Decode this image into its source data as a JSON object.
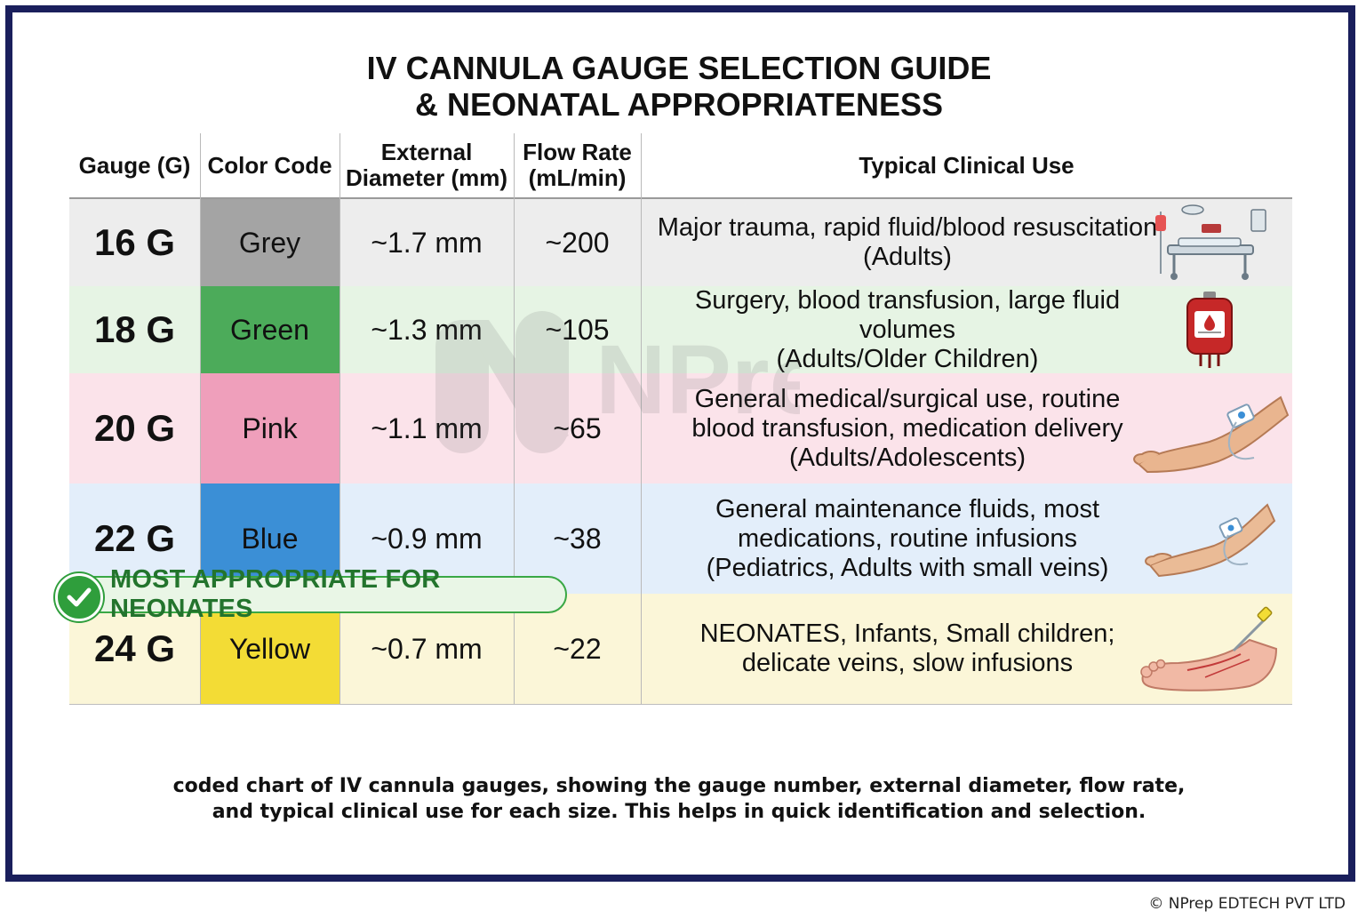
{
  "title": {
    "line1": "IV CANNULA GAUGE SELECTION GUIDE",
    "line2": "& NEONATAL APPROPRIATENESS"
  },
  "watermark": {
    "text": "NPrep"
  },
  "table": {
    "headers": {
      "gauge": "Gauge (G)",
      "color": "Color Code",
      "diameter_line1": "External",
      "diameter_line2": "Diameter (mm)",
      "flow_line1": "Flow Rate",
      "flow_line2": "(mL/min)",
      "use": "Typical Clinical Use"
    },
    "rows": [
      {
        "gauge": "16 G",
        "color_name": "Grey",
        "swatch": "#a4a4a4",
        "bg": "#ededed",
        "diameter": "~1.7 mm",
        "flow": "~200",
        "use": [
          "Major trauma, rapid fluid/blood resuscitation",
          "(Adults)"
        ],
        "icon": "hospital-bed-icon"
      },
      {
        "gauge": "18 G",
        "color_name": "Green",
        "swatch": "#4cab5a",
        "bg": "#e6f4e4",
        "diameter": "~1.3 mm",
        "flow": "~105",
        "use": [
          "Surgery, blood transfusion, large fluid volumes",
          "(Adults/Older Children)"
        ],
        "icon": "blood-bag-icon"
      },
      {
        "gauge": "20 G",
        "color_name": "Pink",
        "swatch": "#ef9fbb",
        "bg": "#fbe3ea",
        "diameter": "~1.1 mm",
        "flow": "~65",
        "use": [
          "General medical/surgical use, routine",
          "blood transfusion, medication delivery",
          "(Adults/Adolescents)"
        ],
        "icon": "arm-cannula-icon"
      },
      {
        "gauge": "22 G",
        "color_name": "Blue",
        "swatch": "#3b8fd6",
        "bg": "#e3eefa",
        "diameter": "~0.9 mm",
        "flow": "~38",
        "use": [
          "General maintenance fluids, most",
          "medications, routine infusions",
          "(Pediatrics, Adults with small veins)"
        ],
        "icon": "small-arm-cannula-icon"
      },
      {
        "gauge": "24 G",
        "color_name": "Yellow",
        "swatch": "#f3dc35",
        "bg": "#fbf6d8",
        "diameter": "~0.7 mm",
        "flow": "~22",
        "use": [
          "NEONATES, Infants, Small children;",
          "delicate veins, slow infusions"
        ],
        "icon": "foot-cannula-icon"
      }
    ]
  },
  "badge": {
    "text": "MOST APPROPRIATE FOR NEONATES",
    "color": "#2f9e3c"
  },
  "caption": {
    "line1": "coded chart of IV cannula gauges, showing the gauge number, external diameter, flow rate,",
    "line2": "and typical clinical use for each size. This helps in quick identification and selection."
  },
  "copyright": "© NPrep EDTECH PVT LTD"
}
